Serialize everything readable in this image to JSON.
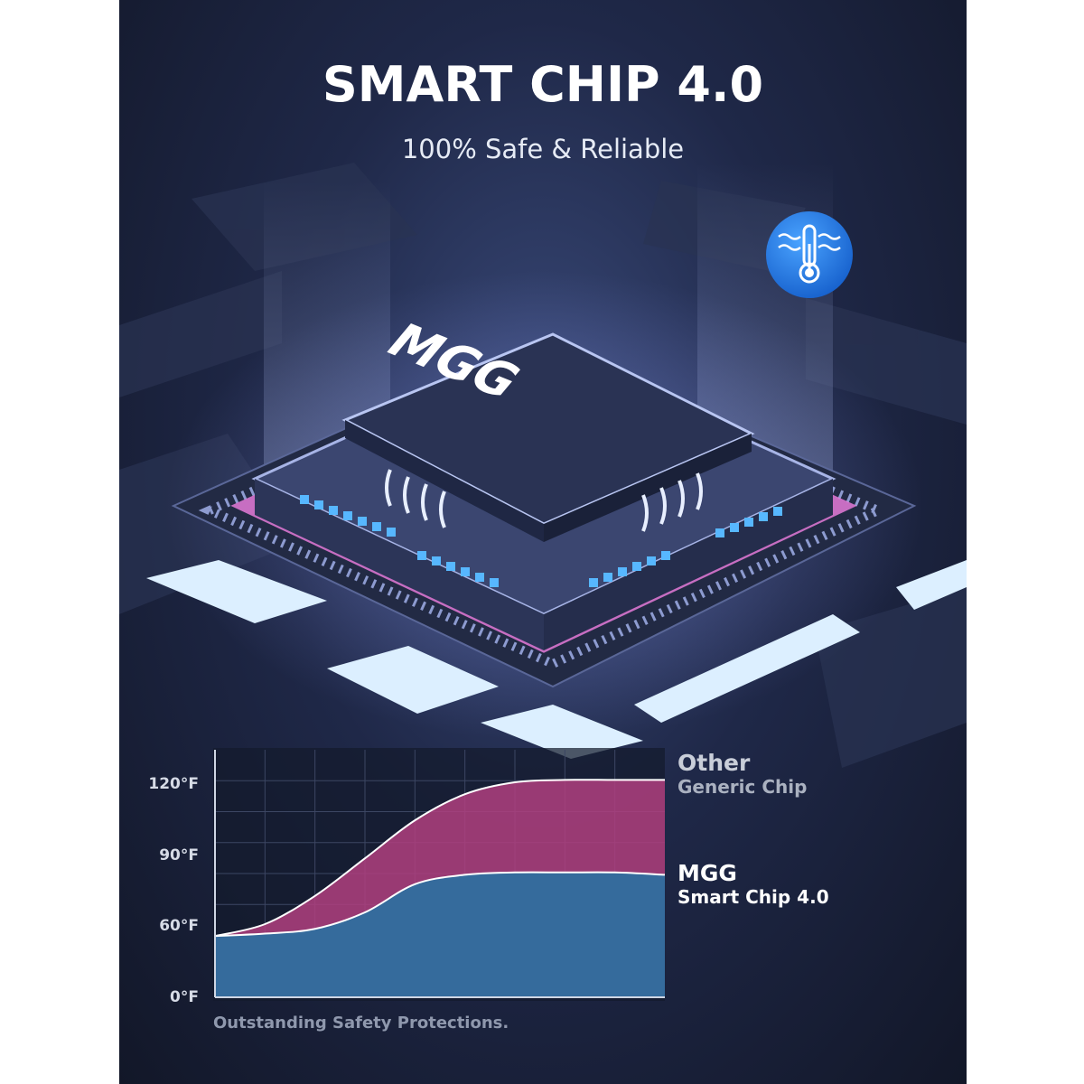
{
  "title": "SMART CHIP 4.0",
  "subtitle": "100% Safe & Reliable",
  "chip_logo_text": "MGG",
  "badge_icon": "thermometer-icon",
  "caption": "Outstanding Safety Protections.",
  "colors": {
    "other_fill": "#b0407f",
    "mgg_fill": "#2f6e9e",
    "badge": "#1f7be6",
    "accent_glow": "#e47ad8"
  },
  "chart_data": {
    "type": "area",
    "y_ticks": [
      {
        "label": "120°F",
        "value": 120
      },
      {
        "label": "90°F",
        "value": 90
      },
      {
        "label": "60°F",
        "value": 60
      },
      {
        "label": "0°F",
        "value": 0
      }
    ],
    "ylim": [
      0,
      130
    ],
    "xlim": [
      0,
      9
    ],
    "grid": true,
    "legend": "right",
    "series": [
      {
        "label_line1": "Other",
        "label_line2": "Generic Chip",
        "x": [
          0,
          1,
          2,
          3,
          4,
          5,
          6,
          7,
          8,
          9
        ],
        "values": [
          50,
          60,
          72,
          88,
          104,
          115,
          120,
          121,
          121,
          121
        ]
      },
      {
        "label_line1": "MGG",
        "label_line2": "Smart Chip 4.0",
        "x": [
          0,
          1,
          2,
          3,
          4,
          5,
          6,
          7,
          8,
          9
        ],
        "values": [
          50,
          52,
          56,
          65,
          77,
          81,
          82,
          82,
          82,
          81
        ]
      }
    ]
  }
}
